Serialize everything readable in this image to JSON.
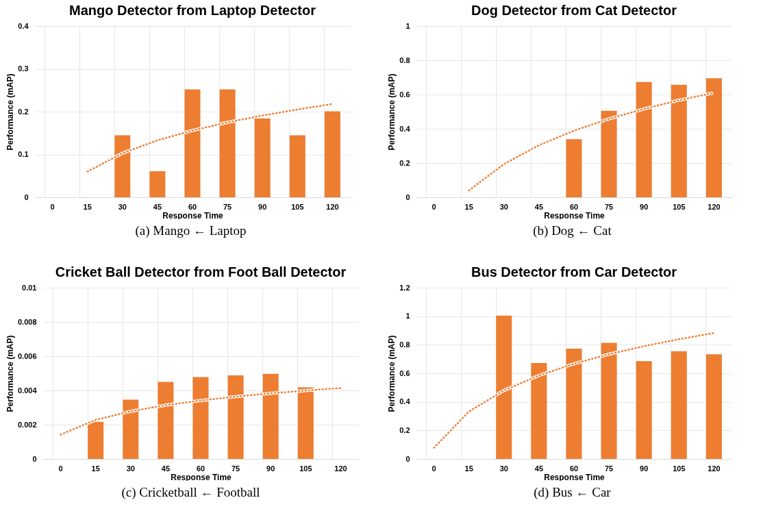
{
  "chart_data": [
    {
      "type": "bar",
      "title": "Mango Detector from Laptop Detector",
      "xlabel": "Response Time",
      "ylabel": "Performance (mAP)",
      "categories": [
        "0",
        "15",
        "30",
        "45",
        "60",
        "75",
        "90",
        "105",
        "120"
      ],
      "series": [
        {
          "color": "#ed7d31",
          "values": [
            null,
            null,
            0.145,
            0.061,
            0.252,
            0.252,
            0.184,
            0.145,
            0.201
          ]
        },
        {
          "type": "line",
          "line_style": "dotted",
          "color": "#ed7d31",
          "values": [
            null,
            0.06,
            0.103,
            0.133,
            0.156,
            0.175,
            0.191,
            0.205,
            0.218
          ]
        }
      ],
      "ylim": [
        0,
        0.4
      ],
      "yticks": [
        0,
        0.1,
        0.2,
        0.3,
        0.4
      ],
      "grid": true,
      "annotations": [
        "(a)  Mango ← Laptop"
      ]
    },
    {
      "type": "bar",
      "title": "Dog Detector from Cat Detector",
      "xlabel": "Response Time",
      "ylabel": "Performance (mAP)",
      "categories": [
        "0",
        "15",
        "30",
        "45",
        "60",
        "75",
        "90",
        "105",
        "120"
      ],
      "series": [
        {
          "color": "#ed7d31",
          "values": [
            null,
            null,
            null,
            null,
            0.339,
            0.505,
            0.673,
            0.657,
            0.695
          ]
        },
        {
          "type": "line",
          "line_style": "dotted",
          "color": "#ed7d31",
          "values": [
            null,
            0.04,
            0.194,
            0.304,
            0.389,
            0.458,
            0.516,
            0.567,
            0.61
          ]
        }
      ],
      "ylim": [
        0,
        1
      ],
      "yticks": [
        0,
        0.2,
        0.4,
        0.6,
        0.8,
        1
      ],
      "grid": true,
      "annotations": [
        "(b)  Dog ← Cat"
      ]
    },
    {
      "type": "bar",
      "title": "Cricket Ball Detector from Foot Ball Detector",
      "xlabel": "Response Time",
      "ylabel": "Performance (mAP)",
      "categories": [
        "0",
        "15",
        "30",
        "45",
        "60",
        "75",
        "90",
        "105",
        "120"
      ],
      "series": [
        {
          "color": "#ed7d31",
          "values": [
            null,
            0.00217,
            0.00346,
            0.0045,
            0.00478,
            0.00488,
            0.00497,
            0.00418,
            null
          ]
        },
        {
          "type": "line",
          "line_style": "dotted",
          "color": "#ed7d31",
          "values": [
            0.00142,
            0.00228,
            0.00278,
            0.00314,
            0.00341,
            0.00364,
            0.00383,
            0.00399,
            0.00414
          ]
        }
      ],
      "ylim": [
        0,
        0.01
      ],
      "yticks": [
        0,
        0.002,
        0.004,
        0.006,
        0.008,
        0.01
      ],
      "grid": true,
      "annotations": [
        "(c)  Cricketball ← Football"
      ]
    },
    {
      "type": "bar",
      "title": "Bus Detector from Car Detector",
      "xlabel": "Response Time",
      "ylabel": "Performance (mAP)",
      "categories": [
        "0",
        "15",
        "30",
        "45",
        "60",
        "75",
        "90",
        "105",
        "120"
      ],
      "series": [
        {
          "color": "#ed7d31",
          "values": [
            null,
            null,
            1.005,
            0.672,
            0.773,
            0.814,
            0.685,
            0.755,
            0.733
          ]
        },
        {
          "type": "line",
          "line_style": "dotted",
          "color": "#ed7d31",
          "values": [
            0.078,
            0.332,
            0.48,
            0.585,
            0.667,
            0.734,
            0.79,
            0.839,
            0.882
          ]
        }
      ],
      "ylim": [
        0,
        1.2
      ],
      "yticks": [
        0,
        0.2,
        0.4,
        0.6,
        0.8,
        1,
        1.2
      ],
      "grid": true,
      "annotations": [
        "(d)  Bus ← Car"
      ]
    }
  ]
}
